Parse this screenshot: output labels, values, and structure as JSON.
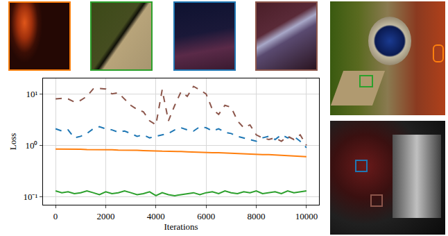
{
  "chart_data": {
    "type": "line",
    "xlabel": "Iterations",
    "ylabel": "Loss",
    "x": [
      0,
      250,
      500,
      750,
      1000,
      1250,
      1500,
      1750,
      2000,
      2250,
      2500,
      2750,
      3000,
      3250,
      3500,
      3750,
      4000,
      4250,
      4500,
      4750,
      5000,
      5250,
      5500,
      5750,
      6000,
      6250,
      6500,
      6750,
      7000,
      7250,
      7500,
      7750,
      8000,
      8250,
      8500,
      8750,
      9000,
      9250,
      9500,
      9750,
      10000
    ],
    "series": [
      {
        "color": "#ff7f0e",
        "line_style": "solid",
        "values": [
          0.85,
          0.85,
          0.84,
          0.84,
          0.84,
          0.83,
          0.83,
          0.82,
          0.82,
          0.82,
          0.81,
          0.81,
          0.8,
          0.8,
          0.79,
          0.79,
          0.78,
          0.77,
          0.77,
          0.76,
          0.76,
          0.75,
          0.74,
          0.74,
          0.73,
          0.72,
          0.72,
          0.71,
          0.7,
          0.69,
          0.69,
          0.68,
          0.67,
          0.66,
          0.66,
          0.65,
          0.64,
          0.63,
          0.63,
          0.62,
          0.6
        ]
      },
      {
        "color": "#2ca02c",
        "line_style": "solid",
        "values": [
          0.13,
          0.12,
          0.125,
          0.115,
          0.12,
          0.13,
          0.12,
          0.11,
          0.125,
          0.115,
          0.12,
          0.13,
          0.12,
          0.11,
          0.115,
          0.125,
          0.105,
          0.12,
          0.11,
          0.105,
          0.11,
          0.115,
          0.12,
          0.11,
          0.12,
          0.125,
          0.115,
          0.13,
          0.12,
          0.115,
          0.125,
          0.12,
          0.13,
          0.115,
          0.12,
          0.125,
          0.115,
          0.13,
          0.12,
          0.125,
          0.13
        ]
      },
      {
        "color": "#1f77b4",
        "line_style": "dashed",
        "values": [
          2.1,
          1.9,
          2.0,
          1.4,
          1.5,
          1.7,
          2.1,
          2.3,
          2.1,
          2.0,
          1.8,
          1.9,
          1.7,
          1.5,
          1.6,
          1.4,
          1.5,
          1.6,
          1.7,
          2.0,
          2.2,
          2.0,
          1.9,
          2.3,
          2.2,
          1.9,
          2.1,
          1.8,
          1.7,
          1.5,
          1.4,
          1.3,
          1.2,
          1.4,
          1.5,
          1.3,
          1.6,
          1.4,
          1.5,
          1.2,
          0.9
        ]
      },
      {
        "color": "#8c564b",
        "line_style": "dashed",
        "values": [
          8,
          8.2,
          8,
          7,
          7.5,
          9,
          12.5,
          12.8,
          12.5,
          10,
          10.5,
          8,
          6,
          5,
          4.5,
          3,
          2.5,
          12,
          3,
          6,
          11,
          9,
          14,
          12,
          10,
          5,
          4,
          6,
          5.5,
          3,
          2.2,
          2.5,
          1.6,
          1.4,
          1.3,
          1.4,
          1.2,
          1.5,
          1.3,
          1.6,
          1.0
        ]
      }
    ],
    "xlim": [
      -500,
      10500
    ],
    "ylim": [
      0.07,
      20
    ],
    "xticks": [
      0,
      2000,
      4000,
      6000,
      8000,
      10000
    ],
    "yticks": [
      {
        "value": 0.1,
        "label": "10⁻¹"
      },
      {
        "value": 1,
        "label": "10⁰"
      },
      {
        "value": 10,
        "label": "10¹"
      }
    ],
    "log": "y",
    "grid": true
  }
}
